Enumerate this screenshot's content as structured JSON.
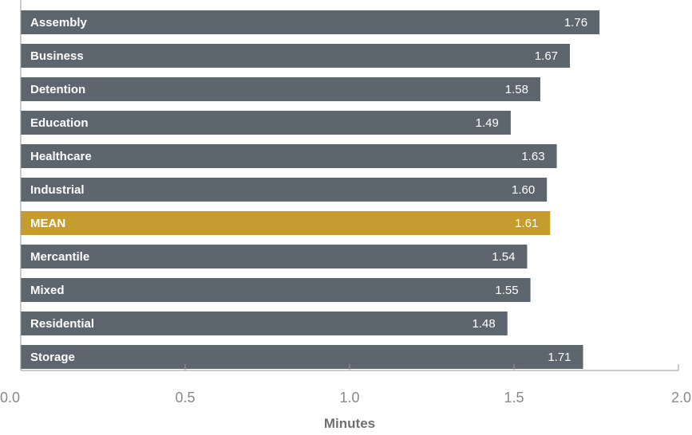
{
  "chart_data": {
    "type": "bar",
    "orientation": "horizontal",
    "categories": [
      "Assembly",
      "Business",
      "Detention",
      "Education",
      "Healthcare",
      "Industrial",
      "MEAN",
      "Mercantile",
      "Mixed",
      "Residential",
      "Storage"
    ],
    "values": [
      1.76,
      1.67,
      1.58,
      1.49,
      1.63,
      1.6,
      1.61,
      1.54,
      1.55,
      1.48,
      1.71
    ],
    "value_labels": [
      "1.76",
      "1.67",
      "1.58",
      "1.49",
      "1.63",
      "1.60",
      "1.61",
      "1.54",
      "1.55",
      "1.48",
      "1.71"
    ],
    "highlight_category": "MEAN",
    "xlabel": "Minutes",
    "xlim": [
      0,
      2.0
    ],
    "xticks": [
      0.0,
      0.5,
      1.0,
      1.5,
      2.0
    ],
    "xtick_labels": [
      "0.0",
      "0.5",
      "1.0",
      "1.5",
      "2.0"
    ],
    "colors": {
      "bar": "#5d666e",
      "highlight": "#c59c2e",
      "axis": "#9a9a9a",
      "bar_text": "#ffffff",
      "tick_text": "#8a8a8a",
      "axis_title": "#6f6f6f"
    }
  }
}
